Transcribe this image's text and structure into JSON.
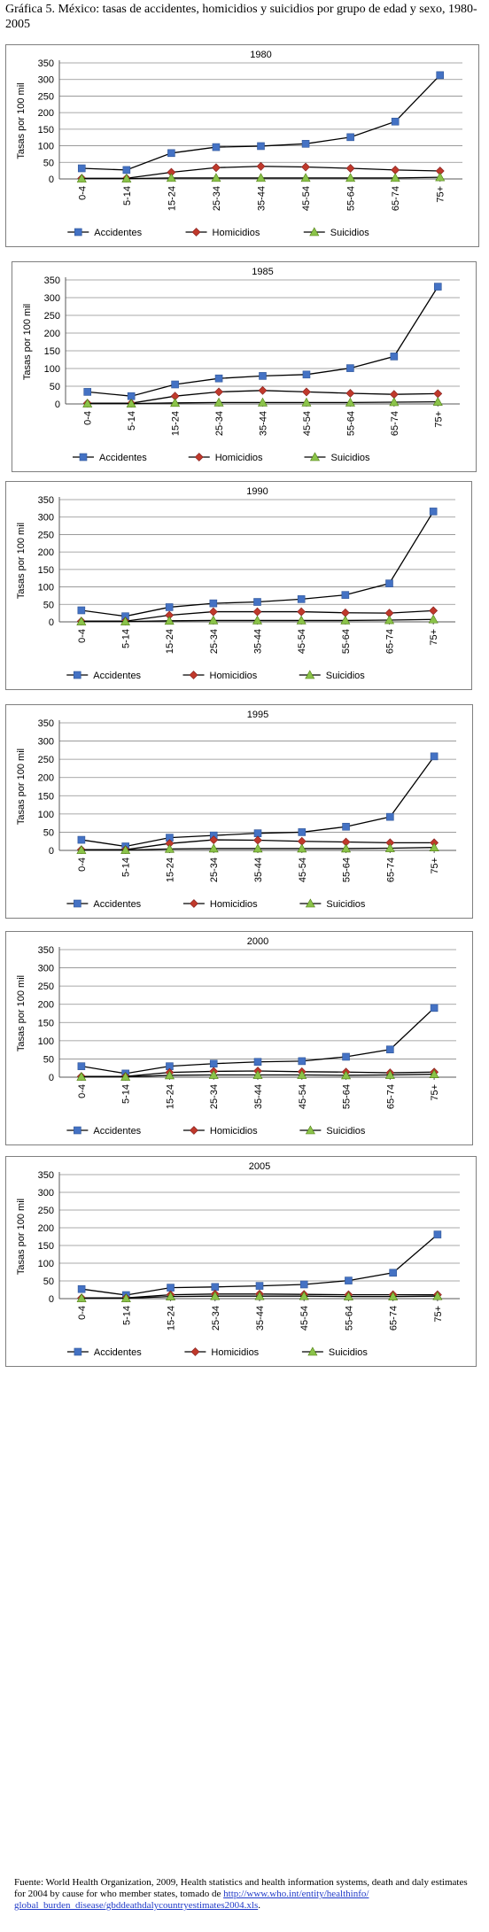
{
  "title": "Gráfica 5. México: tasas de accidentes, homicidios y suicidios por grupo de edad y sexo, 1980-2005",
  "source": {
    "text": "Fuente: World Health Organization, 2009, Health statistics and health information systems, death and daly estimates for 2004 by cause for who member states, tomado de",
    "link": "http://www.who.int/entity/healthinfo/ global_burden_disease/gbddeathdalycountryestimates2004.xls",
    "link_suffix": "."
  },
  "colors": {
    "Accidentes": "#4472c4",
    "Homicidios": "#c0392b",
    "Suicidios": "#8bc34a",
    "line": "#000000",
    "grid": "#8c8c8c"
  },
  "chart_data": [
    {
      "type": "line",
      "title": "1980",
      "ylabel": "Tasas por 100 mil",
      "ylim": [
        0,
        350
      ],
      "yticks": [
        0,
        50,
        100,
        150,
        200,
        250,
        300,
        350
      ],
      "grid": true,
      "legend": "bottom",
      "categories": [
        "0-4",
        "5-14",
        "15-24",
        "25-34",
        "35-44",
        "45-54",
        "55-64",
        "65-74",
        "75+"
      ],
      "series": [
        {
          "name": "Accidentes",
          "marker": "square",
          "values": [
            32,
            27,
            78,
            96,
            99,
            106,
            126,
            173,
            313
          ]
        },
        {
          "name": "Homicidios",
          "marker": "diamond",
          "values": [
            2,
            2,
            20,
            34,
            38,
            36,
            32,
            27,
            24
          ]
        },
        {
          "name": "Suicidios",
          "marker": "triangle",
          "values": [
            1,
            1,
            3,
            3,
            3,
            3,
            3,
            3,
            5
          ]
        }
      ]
    },
    {
      "type": "line",
      "title": "1985",
      "ylabel": "Tasas por 100 mil",
      "ylim": [
        0,
        350
      ],
      "yticks": [
        0,
        50,
        100,
        150,
        200,
        250,
        300,
        350
      ],
      "grid": true,
      "legend": "bottom",
      "categories": [
        "0-4",
        "5-14",
        "15-24",
        "25-34",
        "35-44",
        "45-54",
        "55-64",
        "65-74",
        "75+"
      ],
      "series": [
        {
          "name": "Accidentes",
          "marker": "square",
          "values": [
            34,
            22,
            55,
            72,
            79,
            83,
            101,
            134,
            331
          ]
        },
        {
          "name": "Homicidios",
          "marker": "diamond",
          "values": [
            2,
            2,
            22,
            34,
            38,
            34,
            30,
            27,
            29
          ]
        },
        {
          "name": "Suicidios",
          "marker": "triangle",
          "values": [
            1,
            1,
            3,
            4,
            4,
            4,
            4,
            5,
            6
          ]
        }
      ]
    },
    {
      "type": "line",
      "title": "1990",
      "ylabel": "Tasas por 100 mil",
      "ylim": [
        0,
        350
      ],
      "yticks": [
        0,
        50,
        100,
        150,
        200,
        250,
        300,
        350
      ],
      "grid": true,
      "legend": "bottom",
      "categories": [
        "0-4",
        "5-14",
        "15-24",
        "25-34",
        "35-44",
        "45-54",
        "55-64",
        "65-74",
        "75+"
      ],
      "series": [
        {
          "name": "Accidentes",
          "marker": "square",
          "values": [
            33,
            16,
            42,
            53,
            57,
            65,
            77,
            110,
            316
          ]
        },
        {
          "name": "Homicidios",
          "marker": "diamond",
          "values": [
            2,
            2,
            19,
            29,
            29,
            29,
            26,
            25,
            32
          ]
        },
        {
          "name": "Suicidios",
          "marker": "triangle",
          "values": [
            1,
            1,
            3,
            4,
            4,
            4,
            4,
            5,
            7
          ]
        }
      ]
    },
    {
      "type": "line",
      "title": "1995",
      "ylabel": "Tasas por 100 mil",
      "ylim": [
        0,
        350
      ],
      "yticks": [
        0,
        50,
        100,
        150,
        200,
        250,
        300,
        350
      ],
      "grid": true,
      "legend": "bottom",
      "categories": [
        "0-4",
        "5-14",
        "15-24",
        "25-34",
        "35-44",
        "45-54",
        "55-64",
        "65-74",
        "75+"
      ],
      "series": [
        {
          "name": "Accidentes",
          "marker": "square",
          "values": [
            29,
            11,
            35,
            41,
            47,
            50,
            65,
            92,
            258
          ]
        },
        {
          "name": "Homicidios",
          "marker": "diamond",
          "values": [
            2,
            2,
            19,
            29,
            28,
            25,
            23,
            21,
            21
          ]
        },
        {
          "name": "Suicidios",
          "marker": "triangle",
          "values": [
            1,
            1,
            4,
            5,
            5,
            5,
            5,
            6,
            8
          ]
        }
      ]
    },
    {
      "type": "line",
      "title": "2000",
      "ylabel": "Tasas por 100 mil",
      "ylim": [
        0,
        350
      ],
      "yticks": [
        0,
        50,
        100,
        150,
        200,
        250,
        300,
        350
      ],
      "grid": true,
      "legend": "bottom",
      "categories": [
        "0-4",
        "5-14",
        "15-24",
        "25-34",
        "35-44",
        "45-54",
        "55-64",
        "65-74",
        "75+"
      ],
      "series": [
        {
          "name": "Accidentes",
          "marker": "square",
          "values": [
            30,
            10,
            30,
            37,
            42,
            44,
            56,
            76,
            190
          ]
        },
        {
          "name": "Homicidios",
          "marker": "diamond",
          "values": [
            2,
            2,
            13,
            16,
            17,
            15,
            14,
            12,
            14
          ]
        },
        {
          "name": "Suicidios",
          "marker": "triangle",
          "values": [
            1,
            1,
            5,
            6,
            6,
            6,
            5,
            6,
            8
          ]
        }
      ]
    },
    {
      "type": "line",
      "title": "2005",
      "ylabel": "Tasas por 100 mil",
      "ylim": [
        0,
        350
      ],
      "yticks": [
        0,
        50,
        100,
        150,
        200,
        250,
        300,
        350
      ],
      "grid": true,
      "legend": "bottom",
      "categories": [
        "0-4",
        "5-14",
        "15-24",
        "25-34",
        "35-44",
        "45-54",
        "55-64",
        "65-74",
        "75+"
      ],
      "series": [
        {
          "name": "Accidentes",
          "marker": "square",
          "values": [
            27,
            10,
            31,
            33,
            36,
            40,
            51,
            73,
            181
          ]
        },
        {
          "name": "Homicidios",
          "marker": "diamond",
          "values": [
            2,
            2,
            11,
            13,
            13,
            12,
            11,
            11,
            11
          ]
        },
        {
          "name": "Suicidios",
          "marker": "triangle",
          "values": [
            1,
            1,
            6,
            7,
            7,
            7,
            6,
            6,
            7
          ]
        }
      ]
    }
  ]
}
